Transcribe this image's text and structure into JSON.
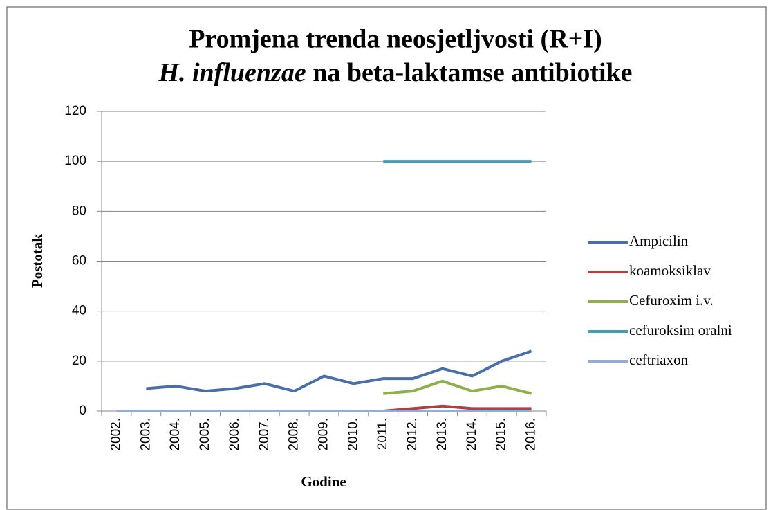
{
  "chart_data": {
    "type": "line",
    "title": {
      "line1": "Promjena trenda neosjetljvosti (R+I)",
      "line2_italic": "H. influenzae",
      "line2_rest": " na beta-laktamse antibiotike"
    },
    "x_label": "Godine",
    "y_label": "Postotak",
    "categories": [
      "2002.",
      "2003.",
      "2004.",
      "2005.",
      "2006.",
      "2007.",
      "2008.",
      "2009.",
      "2010.",
      "2011.",
      "2012.",
      "2013.",
      "2014.",
      "2015.",
      "2016."
    ],
    "series": [
      {
        "name": "Ampicilin",
        "color": "#4a6fa8",
        "values": [
          null,
          9,
          10,
          8,
          9,
          11,
          8,
          14,
          11,
          13,
          13,
          17,
          14,
          20,
          24
        ]
      },
      {
        "name": "koamoksiklav",
        "color": "#b04040",
        "values": [
          null,
          null,
          null,
          null,
          null,
          null,
          null,
          null,
          null,
          0,
          1,
          2,
          1,
          1,
          1
        ]
      },
      {
        "name": "Cefuroxim i.v.",
        "color": "#8db04c",
        "values": [
          null,
          null,
          null,
          null,
          null,
          null,
          null,
          null,
          null,
          7,
          8,
          12,
          8,
          10,
          7
        ]
      },
      {
        "name": "cefuroksim oralni",
        "color": "#3fa0b5",
        "values": [
          null,
          null,
          null,
          null,
          null,
          null,
          null,
          null,
          null,
          100,
          100,
          100,
          100,
          100,
          100
        ]
      },
      {
        "name": "ceftriaxon",
        "color": "#95abd4",
        "values": [
          0,
          0,
          0,
          0,
          0,
          0,
          0,
          0,
          0,
          0,
          0,
          0,
          0,
          0,
          0
        ]
      }
    ],
    "ylim": [
      0,
      120
    ],
    "yticks": [
      0,
      20,
      40,
      60,
      80,
      100,
      120
    ],
    "grid": true,
    "legend": "right"
  }
}
